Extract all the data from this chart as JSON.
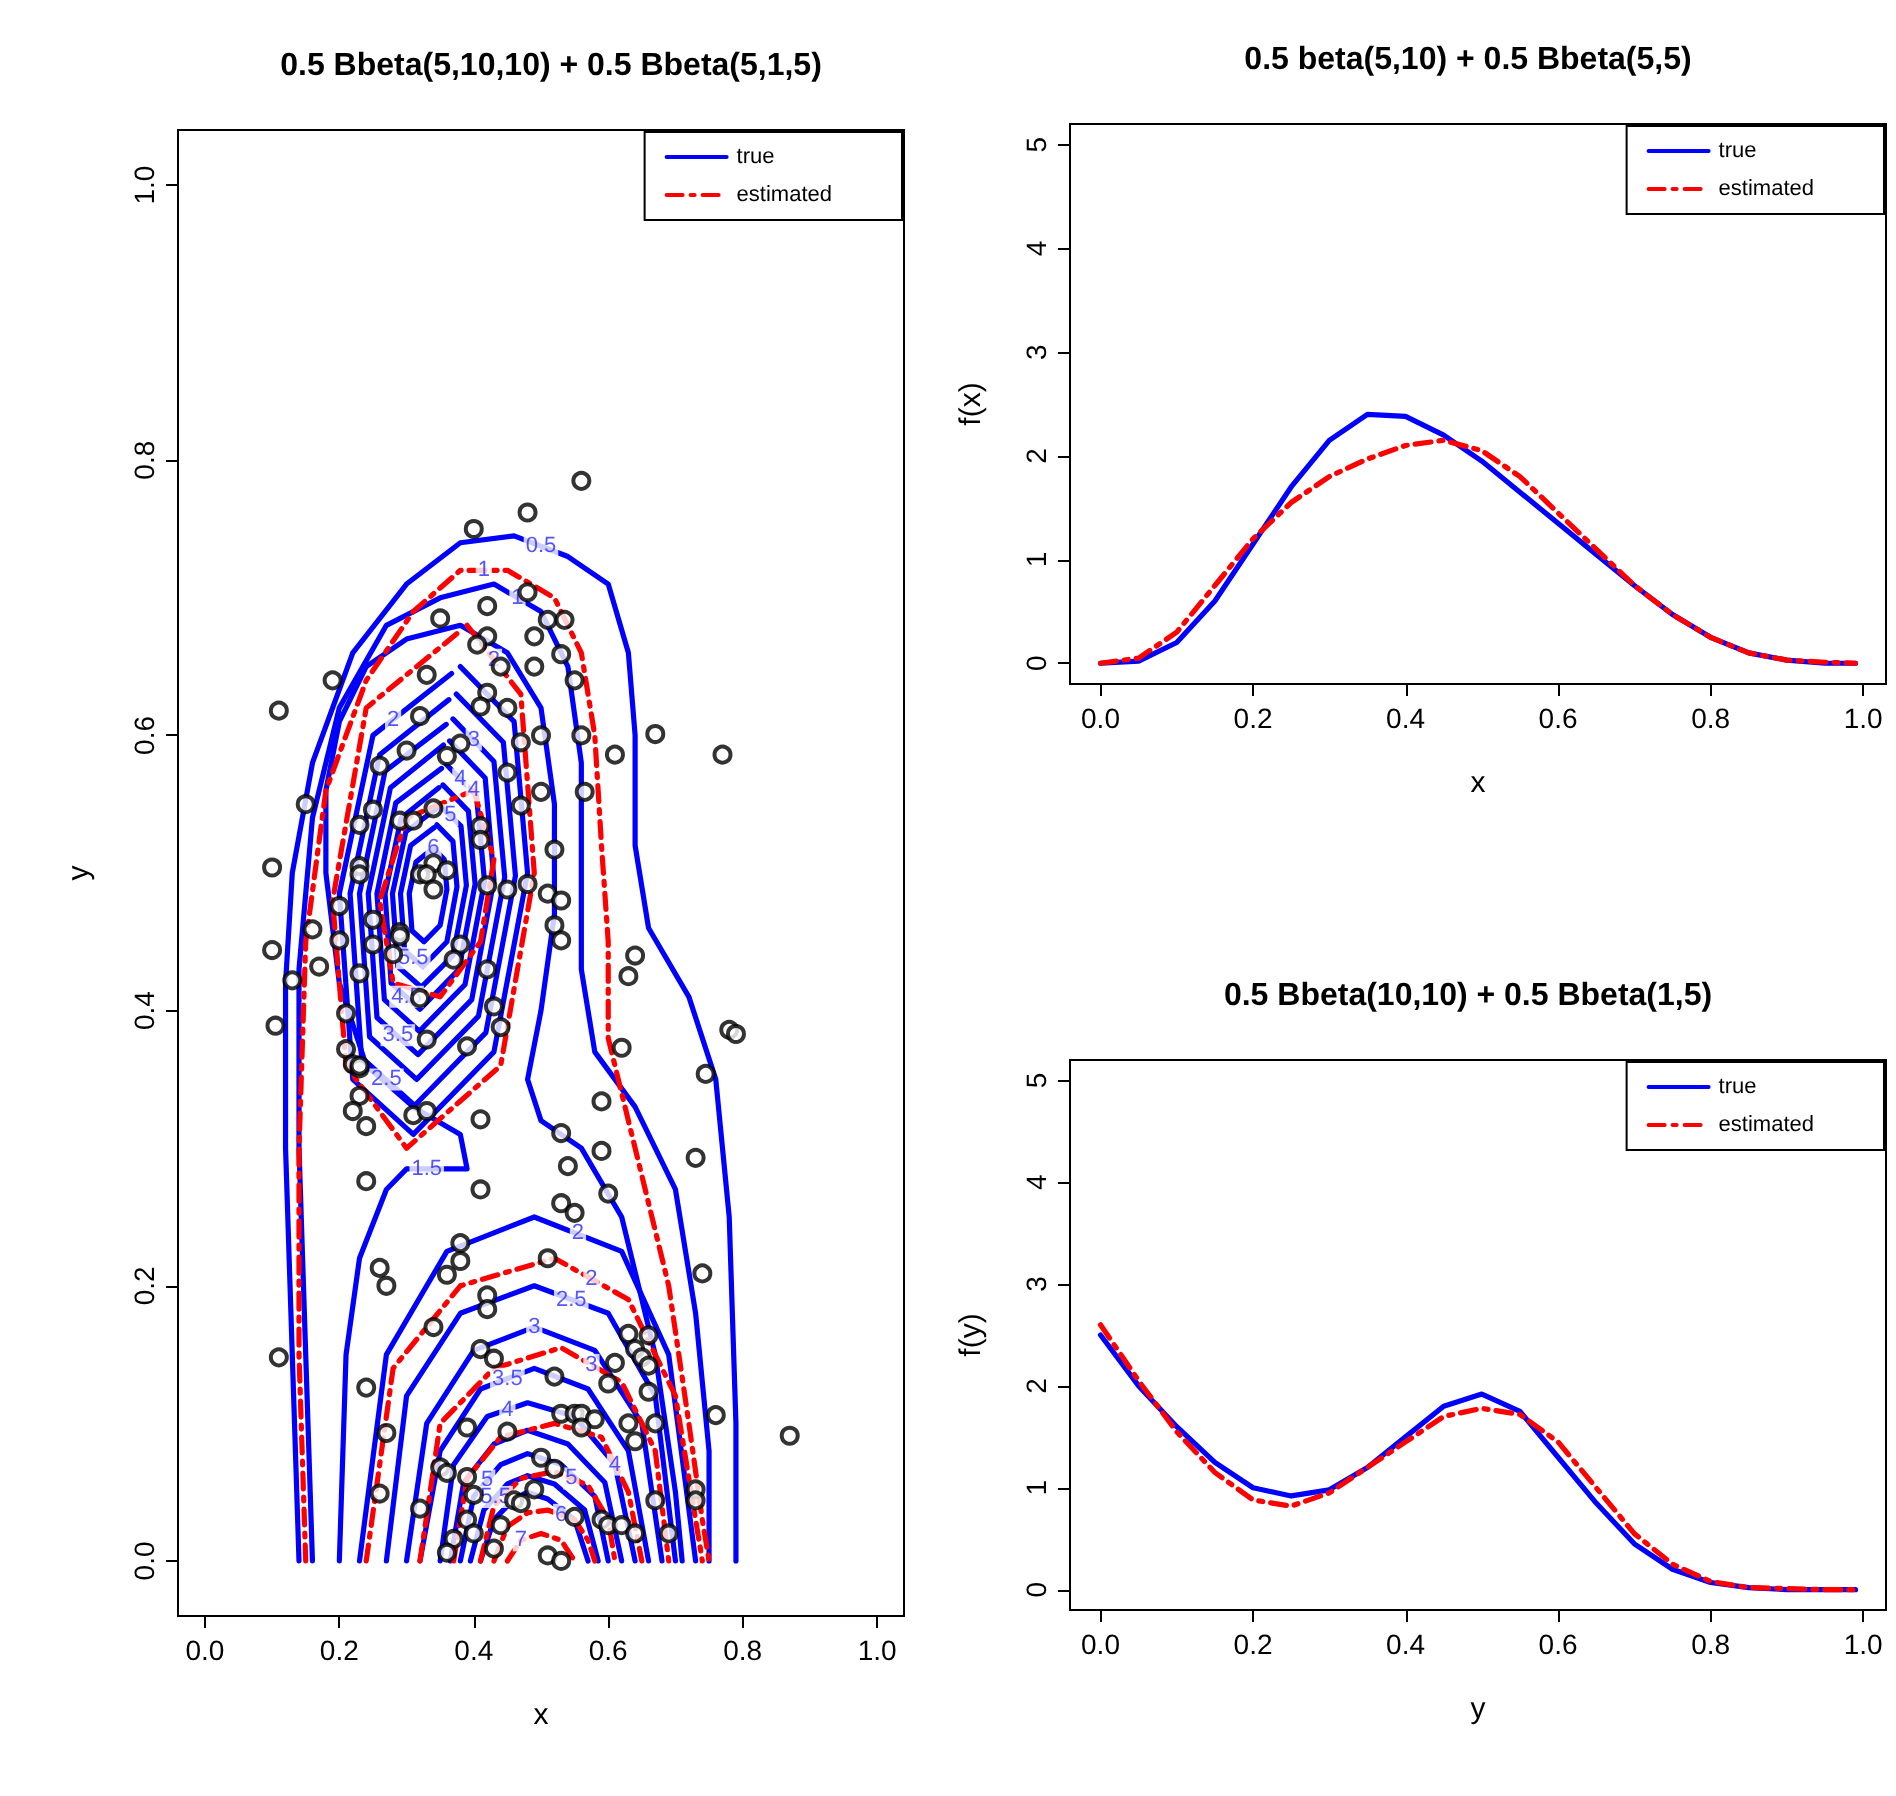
{
  "chart_data": [
    {
      "type": "scatter",
      "title": "0.5 Bbeta(5,10,10) + 0.5 Bbeta(5,1,5)",
      "xlabel": "x",
      "ylabel": "y",
      "xlim": [
        -0.04,
        1.04
      ],
      "ylim": [
        -0.04,
        1.04
      ],
      "xticks": [
        {
          "value": 0,
          "label": "0.0"
        },
        {
          "value": 0.2,
          "label": "0.2"
        },
        {
          "value": 0.4,
          "label": "0.4"
        },
        {
          "value": 0.6,
          "label": "0.6"
        },
        {
          "value": 0.8,
          "label": "0.8"
        },
        {
          "value": 1,
          "label": "1.0"
        }
      ],
      "yticks": [
        {
          "value": 0,
          "label": "0.0"
        },
        {
          "value": 0.2,
          "label": "0.2"
        },
        {
          "value": 0.4,
          "label": "0.4"
        },
        {
          "value": 0.6,
          "label": "0.6"
        },
        {
          "value": 0.8,
          "label": "0.8"
        },
        {
          "value": 1,
          "label": "1.0"
        }
      ],
      "legend": "top right",
      "series": [
        {
          "color": "#000000",
          "marker": "circle",
          "x": [
            0.56,
            0.48,
            0.4,
            0.48,
            0.42,
            0.35,
            0.51,
            0.535,
            0.42,
            0.405,
            0.49,
            0.53,
            0.19,
            0.11,
            0.44,
            0.49,
            0.55,
            0.33,
            0.42,
            0.41,
            0.45,
            0.32,
            0.5,
            0.47,
            0.56,
            0.67,
            0.77,
            0.61,
            0.38,
            0.3,
            0.26,
            0.45,
            0.5,
            0.565,
            0.36,
            0.34,
            0.47,
            0.15,
            0.25,
            0.29,
            0.31,
            0.41,
            0.41,
            0.23,
            0.52,
            0.34,
            0.36,
            0.32,
            0.33,
            0.34,
            0.1,
            0.23,
            0.23,
            0.45,
            0.42,
            0.48,
            0.51,
            0.53,
            0.2,
            0.25,
            0.29,
            0.29,
            0.52,
            0.53,
            0.16,
            0.2,
            0.25,
            0.28,
            0.38,
            0.37,
            0.1,
            0.13,
            0.17,
            0.64,
            0.63,
            0.42,
            0.23,
            0.32,
            0.21,
            0.43,
            0.105,
            0.44,
            0.78,
            0.79,
            0.33,
            0.39,
            0.62,
            0.21,
            0.22,
            0.23,
            0.745,
            0.23,
            0.23,
            0.22,
            0.24,
            0.31,
            0.33,
            0.41,
            0.59,
            0.53,
            0.59,
            0.73,
            0.54,
            0.24,
            0.41,
            0.6,
            0.53,
            0.55,
            0.38,
            0.38,
            0.36,
            0.26,
            0.27,
            0.51,
            0.74,
            0.42,
            0.42,
            0.34,
            0.11,
            0.41,
            0.43,
            0.63,
            0.66,
            0.64,
            0.65,
            0.66,
            0.61,
            0.6,
            0.66,
            0.24,
            0.52,
            0.76,
            0.87,
            0.53,
            0.55,
            0.56,
            0.58,
            0.56,
            0.63,
            0.67,
            0.64,
            0.39,
            0.27,
            0.45,
            0.35,
            0.36,
            0.5,
            0.52,
            0.49,
            0.39,
            0.4,
            0.26,
            0.32,
            0.46,
            0.47,
            0.67,
            0.73,
            0.73,
            0.55,
            0.59,
            0.6,
            0.62,
            0.64,
            0.69,
            0.39,
            0.44,
            0.4,
            0.37,
            0.43,
            0.36,
            0.51,
            0.53
          ],
          "values": [
            0.785,
            0.762,
            0.75,
            0.704,
            0.694,
            0.685,
            0.684,
            0.684,
            0.672,
            0.666,
            0.672,
            0.659,
            0.64,
            0.618,
            0.65,
            0.65,
            0.64,
            0.644,
            0.631,
            0.621,
            0.62,
            0.614,
            0.6,
            0.595,
            0.6,
            0.601,
            0.586,
            0.586,
            0.594,
            0.589,
            0.578,
            0.573,
            0.559,
            0.559,
            0.585,
            0.547,
            0.549,
            0.55,
            0.546,
            0.538,
            0.538,
            0.534,
            0.524,
            0.535,
            0.517,
            0.507,
            0.502,
            0.499,
            0.499,
            0.488,
            0.504,
            0.505,
            0.499,
            0.488,
            0.491,
            0.492,
            0.485,
            0.48,
            0.476,
            0.466,
            0.457,
            0.454,
            0.462,
            0.451,
            0.459,
            0.451,
            0.448,
            0.441,
            0.448,
            0.437,
            0.444,
            0.422,
            0.432,
            0.44,
            0.425,
            0.43,
            0.427,
            0.409,
            0.398,
            0.403,
            0.389,
            0.388,
            0.386,
            0.383,
            0.379,
            0.374,
            0.373,
            0.372,
            0.361,
            0.358,
            0.354,
            0.36,
            0.338,
            0.327,
            0.316,
            0.324,
            0.327,
            0.321,
            0.334,
            0.311,
            0.298,
            0.293,
            0.287,
            0.276,
            0.27,
            0.267,
            0.26,
            0.253,
            0.231,
            0.218,
            0.208,
            0.213,
            0.2,
            0.22,
            0.209,
            0.193,
            0.183,
            0.17,
            0.148,
            0.154,
            0.147,
            0.165,
            0.164,
            0.154,
            0.148,
            0.142,
            0.144,
            0.129,
            0.123,
            0.126,
            0.134,
            0.106,
            0.091,
            0.107,
            0.107,
            0.107,
            0.103,
            0.097,
            0.1,
            0.1,
            0.087,
            0.097,
            0.093,
            0.094,
            0.068,
            0.064,
            0.075,
            0.067,
            0.052,
            0.061,
            0.048,
            0.049,
            0.038,
            0.044,
            0.042,
            0.044,
            0.052,
            0.044,
            0.032,
            0.03,
            0.026,
            0.026,
            0.02,
            0.02,
            0.03,
            0.026,
            0.02,
            0.016,
            0.009,
            0.006,
            0.004,
            0.0
          ]
        },
        {
          "type": "line",
          "name": "true",
          "color": "#0000ff",
          "line_style": "solid",
          "x": [
            0.14,
            0.13,
            0.12,
            0.12,
            0.13,
            0.16,
            0.22,
            0.3,
            0.38,
            0.46,
            0.54,
            0.6,
            0.63,
            0.64,
            0.64,
            0.66,
            0.72,
            0.76,
            0.78,
            0.79,
            0.79
          ],
          "values": [
            0,
            0.15,
            0.3,
            0.42,
            0.5,
            0.58,
            0.66,
            0.71,
            0.74,
            0.745,
            0.73,
            0.71,
            0.66,
            0.6,
            0.52,
            0.46,
            0.41,
            0.35,
            0.25,
            0.1,
            0
          ]
        },
        {
          "type": "line",
          "color": "#0000ff",
          "line_style": "solid",
          "x": [
            0.16,
            0.15,
            0.14,
            0.14,
            0.16,
            0.2,
            0.27,
            0.35,
            0.43,
            0.5,
            0.54,
            0.56,
            0.56,
            0.56,
            0.58,
            0.64,
            0.7,
            0.73,
            0.75,
            0.75
          ],
          "values": [
            0,
            0.15,
            0.3,
            0.43,
            0.54,
            0.62,
            0.68,
            0.7,
            0.71,
            0.69,
            0.65,
            0.58,
            0.5,
            0.43,
            0.37,
            0.33,
            0.27,
            0.18,
            0.08,
            0
          ]
        },
        {
          "type": "line",
          "color": "#0000ff",
          "line_style": "solid",
          "x": [
            0.2,
            0.21,
            0.23,
            0.27,
            0.3,
            0.39,
            0.38,
            0.31,
            0.24,
            0.2,
            0.18,
            0.18,
            0.2,
            0.24,
            0.3,
            0.38,
            0.45,
            0.5,
            0.52,
            0.52,
            0.5,
            0.48,
            0.5,
            0.56,
            0.62,
            0.67,
            0.7,
            0.71
          ],
          "values": [
            0,
            0.15,
            0.22,
            0.27,
            0.285,
            0.285,
            0.31,
            0.33,
            0.36,
            0.42,
            0.5,
            0.56,
            0.61,
            0.65,
            0.67,
            0.68,
            0.66,
            0.62,
            0.55,
            0.47,
            0.4,
            0.35,
            0.32,
            0.3,
            0.25,
            0.15,
            0.05,
            0
          ]
        },
        {
          "type": "line",
          "color": "#0000ff",
          "line_style": "solid",
          "x": [
            0.38,
            0.46,
            0.48,
            0.43,
            0.31,
            0.22,
            0.2,
            0.25,
            0.367
          ],
          "values": [
            0.65,
            0.61,
            0.5,
            0.37,
            0.31,
            0.35,
            0.485,
            0.6,
            0.645
          ]
        },
        {
          "type": "line",
          "color": "#0000ff",
          "line_style": "solid",
          "x": [
            0.374,
            0.444,
            0.462,
            0.418,
            0.312,
            0.233,
            0.216,
            0.26,
            0.363
          ],
          "values": [
            0.63,
            0.595,
            0.498,
            0.384,
            0.331,
            0.366,
            0.485,
            0.586,
            0.626
          ]
        },
        {
          "type": "line",
          "color": "#0000ff",
          "line_style": "solid",
          "x": [
            0.369,
            0.43,
            0.446,
            0.407,
            0.315,
            0.245,
            0.23,
            0.268,
            0.359
          ],
          "values": [
            0.612,
            0.581,
            0.497,
            0.396,
            0.35,
            0.381,
            0.485,
            0.574,
            0.608
          ]
        },
        {
          "type": "line",
          "color": "#0000ff",
          "line_style": "solid",
          "x": [
            0.364,
            0.417,
            0.43,
            0.397,
            0.317,
            0.256,
            0.243,
            0.276,
            0.355
          ],
          "values": [
            0.596,
            0.569,
            0.495,
            0.408,
            0.368,
            0.395,
            0.485,
            0.562,
            0.593
          ]
        },
        {
          "type": "line",
          "color": "#0000ff",
          "line_style": "solid",
          "x": [
            0.359,
            0.404,
            0.416,
            0.387,
            0.319,
            0.267,
            0.256,
            0.284,
            0.352
          ],
          "values": [
            0.579,
            0.556,
            0.494,
            0.419,
            0.385,
            0.408,
            0.485,
            0.551,
            0.576
          ]
        },
        {
          "type": "line",
          "color": "#0000ff",
          "line_style": "solid",
          "x": [
            0.354,
            0.392,
            0.402,
            0.378,
            0.32,
            0.277,
            0.268,
            0.292,
            0.348
          ],
          "values": [
            0.564,
            0.545,
            0.492,
            0.43,
            0.401,
            0.42,
            0.485,
            0.54,
            0.562
          ]
        },
        {
          "type": "line",
          "color": "#0000ff",
          "line_style": "solid",
          "x": [
            0.35,
            0.381,
            0.389,
            0.369,
            0.322,
            0.287,
            0.279,
            0.299,
            0.345
          ],
          "values": [
            0.549,
            0.534,
            0.491,
            0.44,
            0.417,
            0.432,
            0.485,
            0.53,
            0.547
          ]
        },
        {
          "type": "line",
          "color": "#0000ff",
          "line_style": "solid",
          "x": [
            0.345,
            0.369,
            0.375,
            0.36,
            0.324,
            0.297,
            0.291,
            0.306,
            0.341
          ],
          "values": [
            0.535,
            0.523,
            0.49,
            0.45,
            0.432,
            0.444,
            0.485,
            0.52,
            0.533
          ]
        },
        {
          "type": "line",
          "color": "#0000ff",
          "line_style": "solid",
          "x": [
            0.34,
            0.356,
            0.36,
            0.35,
            0.326,
            0.308,
            0.304,
            0.314,
            0.337
          ],
          "values": [
            0.518,
            0.51,
            0.488,
            0.462,
            0.45,
            0.458,
            0.485,
            0.508,
            0.517
          ]
        },
        {
          "type": "line",
          "color": "#0000ff",
          "line_style": "solid",
          "x": [
            0.23,
            0.27,
            0.36,
            0.49,
            0.62,
            0.69,
            0.73
          ],
          "values": [
            0,
            0.15,
            0.225,
            0.25,
            0.225,
            0.15,
            0
          ]
        },
        {
          "type": "line",
          "color": "#0000ff",
          "line_style": "solid",
          "x": [
            0.27,
            0.3,
            0.38,
            0.49,
            0.6,
            0.67,
            0.7
          ],
          "values": [
            0,
            0.12,
            0.18,
            0.2,
            0.18,
            0.12,
            0
          ]
        },
        {
          "type": "line",
          "color": "#0000ff",
          "line_style": "solid",
          "x": [
            0.3,
            0.33,
            0.4,
            0.49,
            0.58,
            0.65,
            0.68
          ],
          "values": [
            0,
            0.1,
            0.153,
            0.17,
            0.153,
            0.1,
            0
          ]
        },
        {
          "type": "line",
          "color": "#0000ff",
          "line_style": "solid",
          "x": [
            0.32,
            0.35,
            0.41,
            0.49,
            0.57,
            0.63,
            0.66
          ],
          "values": [
            0,
            0.08,
            0.125,
            0.14,
            0.125,
            0.08,
            0
          ]
        },
        {
          "type": "line",
          "color": "#0000ff",
          "line_style": "solid",
          "x": [
            0.35,
            0.37,
            0.42,
            0.48,
            0.55,
            0.61,
            0.64
          ],
          "values": [
            0,
            0.07,
            0.105,
            0.115,
            0.105,
            0.07,
            0
          ]
        },
        {
          "type": "line",
          "color": "#0000ff",
          "line_style": "solid",
          "x": [
            0.365,
            0.385,
            0.43,
            0.48,
            0.54,
            0.595,
            0.62
          ],
          "values": [
            0,
            0.057,
            0.085,
            0.095,
            0.085,
            0.057,
            0
          ]
        },
        {
          "type": "line",
          "color": "#0000ff",
          "line_style": "solid",
          "x": [
            0.38,
            0.4,
            0.44,
            0.48,
            0.53,
            0.58,
            0.6
          ],
          "values": [
            0,
            0.047,
            0.07,
            0.078,
            0.07,
            0.047,
            0
          ]
        },
        {
          "type": "line",
          "color": "#0000ff",
          "line_style": "solid",
          "x": [
            0.395,
            0.415,
            0.45,
            0.48,
            0.52,
            0.565,
            0.585
          ],
          "values": [
            0,
            0.037,
            0.056,
            0.062,
            0.056,
            0.037,
            0
          ]
        },
        {
          "type": "line",
          "color": "#0000ff",
          "line_style": "solid",
          "x": [
            0.41,
            0.43,
            0.46,
            0.48,
            0.51,
            0.55,
            0.57
          ],
          "values": [
            0,
            0.03,
            0.045,
            0.05,
            0.045,
            0.03,
            0
          ]
        },
        {
          "type": "line",
          "name": "estimated",
          "color": "#ff0000",
          "line_style": "dashed",
          "x": [
            0.15,
            0.14,
            0.14,
            0.15,
            0.18,
            0.24,
            0.31,
            0.38,
            0.45,
            0.52,
            0.56,
            0.58,
            0.59,
            0.6,
            0.6,
            0.64,
            0.69,
            0.72,
            0.74,
            0.75
          ],
          "values": [
            0,
            0.15,
            0.3,
            0.45,
            0.56,
            0.64,
            0.69,
            0.72,
            0.72,
            0.7,
            0.66,
            0.6,
            0.52,
            0.45,
            0.38,
            0.3,
            0.2,
            0.1,
            0.03,
            0
          ]
        },
        {
          "type": "line",
          "color": "#ff0000",
          "line_style": "dashed",
          "x": [
            0.39,
            0.47,
            0.49,
            0.44,
            0.3,
            0.21,
            0.19,
            0.24,
            0.375
          ],
          "values": [
            0.68,
            0.63,
            0.5,
            0.36,
            0.3,
            0.36,
            0.48,
            0.62,
            0.674
          ]
        },
        {
          "type": "line",
          "color": "#ff0000",
          "line_style": "dashed",
          "x": [
            0.4,
            0.43,
            0.41,
            0.35,
            0.28,
            0.26,
            0.3,
            0.39
          ],
          "values": [
            0.56,
            0.51,
            0.45,
            0.41,
            0.42,
            0.48,
            0.54,
            0.558
          ]
        },
        {
          "type": "line",
          "color": "#ff0000",
          "line_style": "dashed",
          "x": [
            0.24,
            0.28,
            0.38,
            0.52,
            0.63,
            0.7,
            0.74
          ],
          "values": [
            0,
            0.14,
            0.2,
            0.22,
            0.19,
            0.12,
            0
          ]
        },
        {
          "type": "line",
          "color": "#ff0000",
          "line_style": "dashed",
          "x": [
            0.32,
            0.35,
            0.43,
            0.53,
            0.62,
            0.67,
            0.69
          ],
          "values": [
            0,
            0.1,
            0.14,
            0.155,
            0.13,
            0.08,
            0
          ]
        },
        {
          "type": "line",
          "color": "#ff0000",
          "line_style": "dashed",
          "x": [
            0.37,
            0.39,
            0.44,
            0.52,
            0.59,
            0.63,
            0.65
          ],
          "values": [
            0,
            0.06,
            0.09,
            0.1,
            0.09,
            0.05,
            0
          ]
        },
        {
          "type": "line",
          "color": "#ff0000",
          "line_style": "dashed",
          "x": [
            0.41,
            0.43,
            0.47,
            0.52,
            0.57,
            0.6,
            0.61
          ],
          "values": [
            0,
            0.04,
            0.06,
            0.065,
            0.055,
            0.03,
            0
          ]
        },
        {
          "type": "line",
          "color": "#ff0000",
          "line_style": "dashed",
          "x": [
            0.43,
            0.45,
            0.48,
            0.51,
            0.55,
            0.57,
            0.58
          ],
          "values": [
            0,
            0.025,
            0.035,
            0.037,
            0.03,
            0.015,
            0
          ]
        },
        {
          "type": "line",
          "color": "#ff0000",
          "line_style": "dashed",
          "x": [
            0.45,
            0.47,
            0.5,
            0.53,
            0.55
          ],
          "values": [
            0,
            0.015,
            0.02,
            0.015,
            0
          ]
        }
      ],
      "annotations": [
        {
          "text": "0.5",
          "x": 0.5,
          "y": 0.738
        },
        {
          "text": "1",
          "x": 0.465,
          "y": 0.7
        },
        {
          "text": "1",
          "x": 0.415,
          "y": 0.72
        },
        {
          "text": "2",
          "x": 0.43,
          "y": 0.655
        },
        {
          "text": "2",
          "x": 0.28,
          "y": 0.6115
        },
        {
          "text": "3",
          "x": 0.4,
          "y": 0.597
        },
        {
          "text": "4",
          "x": 0.38,
          "y": 0.568
        },
        {
          "text": "4",
          "x": 0.4,
          "y": 0.56
        },
        {
          "text": "5",
          "x": 0.365,
          "y": 0.542
        },
        {
          "text": "6",
          "x": 0.34,
          "y": 0.518
        },
        {
          "text": "5.5",
          "x": 0.31,
          "y": 0.438
        },
        {
          "text": "4.5",
          "x": 0.3,
          "y": 0.41
        },
        {
          "text": "3.5",
          "x": 0.287,
          "y": 0.382
        },
        {
          "text": "2.5",
          "x": 0.27,
          "y": 0.35
        },
        {
          "text": "1.5",
          "x": 0.33,
          "y": 0.285
        },
        {
          "text": "2",
          "x": 0.555,
          "y": 0.238
        },
        {
          "text": "2.5",
          "x": 0.545,
          "y": 0.19
        },
        {
          "text": "2",
          "x": 0.575,
          "y": 0.205
        },
        {
          "text": "3",
          "x": 0.49,
          "y": 0.17
        },
        {
          "text": "3",
          "x": 0.575,
          "y": 0.1425
        },
        {
          "text": "3.5",
          "x": 0.45,
          "y": 0.1325
        },
        {
          "text": "4",
          "x": 0.45,
          "y": 0.11
        },
        {
          "text": "4",
          "x": 0.61,
          "y": 0.07
        },
        {
          "text": "5",
          "x": 0.545,
          "y": 0.06
        },
        {
          "text": "5",
          "x": 0.42,
          "y": 0.0585
        },
        {
          "text": "6",
          "x": 0.53,
          "y": 0.0335
        },
        {
          "text": "5.5",
          "x": 0.4325,
          "y": 0.0465
        },
        {
          "text": "7",
          "x": 0.47,
          "y": 0.015
        }
      ]
    },
    {
      "type": "line",
      "title": "0.5 beta(5,10) + 0.5 Bbeta(5,5)",
      "xlabel": "x",
      "ylabel": "f(x)",
      "xlim": [
        -0.04,
        1.03
      ],
      "ylim": [
        -0.2,
        5.2
      ],
      "xticks": [
        {
          "value": 0,
          "label": "0.0"
        },
        {
          "value": 0.2,
          "label": "0.2"
        },
        {
          "value": 0.4,
          "label": "0.4"
        },
        {
          "value": 0.6,
          "label": "0.6"
        },
        {
          "value": 0.8,
          "label": "0.8"
        },
        {
          "value": 1,
          "label": "1.0"
        }
      ],
      "yticks": [
        0,
        1,
        2,
        3,
        4,
        5
      ],
      "legend": "top right",
      "x": [
        0,
        0.05,
        0.1,
        0.15,
        0.2,
        0.25,
        0.3,
        0.35,
        0.4,
        0.45,
        0.5,
        0.55,
        0.6,
        0.65,
        0.7,
        0.75,
        0.8,
        0.85,
        0.9,
        0.95,
        0.99
      ],
      "series": [
        {
          "name": "true",
          "color": "#0000ff",
          "line_style": "solid",
          "values": [
            0,
            0.02,
            0.2,
            0.6,
            1.15,
            1.7,
            2.15,
            2.4,
            2.38,
            2.2,
            1.95,
            1.65,
            1.35,
            1.05,
            0.75,
            0.47,
            0.25,
            0.1,
            0.03,
            0.0,
            0
          ]
        },
        {
          "name": "estimated",
          "color": "#ff0000",
          "line_style": "dashed",
          "values": [
            0,
            0.05,
            0.3,
            0.75,
            1.2,
            1.55,
            1.8,
            1.97,
            2.1,
            2.15,
            2.05,
            1.8,
            1.45,
            1.1,
            0.75,
            0.47,
            0.25,
            0.1,
            0.03,
            0.01,
            0
          ]
        }
      ]
    },
    {
      "type": "line",
      "title": "0.5 Bbeta(10,10) + 0.5 Bbeta(1,5)",
      "xlabel": "y",
      "ylabel": "f(y)",
      "xlim": [
        -0.04,
        1.03
      ],
      "ylim": [
        -0.2,
        5.2
      ],
      "xticks": [
        {
          "value": 0,
          "label": "0.0"
        },
        {
          "value": 0.2,
          "label": "0.2"
        },
        {
          "value": 0.4,
          "label": "0.4"
        },
        {
          "value": 0.6,
          "label": "0.6"
        },
        {
          "value": 0.8,
          "label": "0.8"
        },
        {
          "value": 1,
          "label": "1.0"
        }
      ],
      "yticks": [
        0,
        1,
        2,
        3,
        4,
        5
      ],
      "legend": "top right",
      "x": [
        0,
        0.05,
        0.1,
        0.15,
        0.2,
        0.25,
        0.3,
        0.35,
        0.4,
        0.45,
        0.5,
        0.55,
        0.6,
        0.65,
        0.7,
        0.75,
        0.8,
        0.85,
        0.9,
        0.95,
        0.99
      ],
      "series": [
        {
          "name": "true",
          "color": "#0000ff",
          "line_style": "solid",
          "values": [
            2.5,
            2.0,
            1.6,
            1.25,
            1.0,
            0.92,
            0.98,
            1.2,
            1.5,
            1.8,
            1.92,
            1.75,
            1.3,
            0.85,
            0.45,
            0.2,
            0.07,
            0.02,
            0,
            0,
            0
          ]
        },
        {
          "name": "estimated",
          "color": "#ff0000",
          "line_style": "dashed",
          "values": [
            2.6,
            2.05,
            1.55,
            1.15,
            0.88,
            0.82,
            0.95,
            1.2,
            1.45,
            1.7,
            1.78,
            1.72,
            1.45,
            1.0,
            0.55,
            0.25,
            0.08,
            0.02,
            0.01,
            0,
            0
          ]
        }
      ]
    }
  ]
}
